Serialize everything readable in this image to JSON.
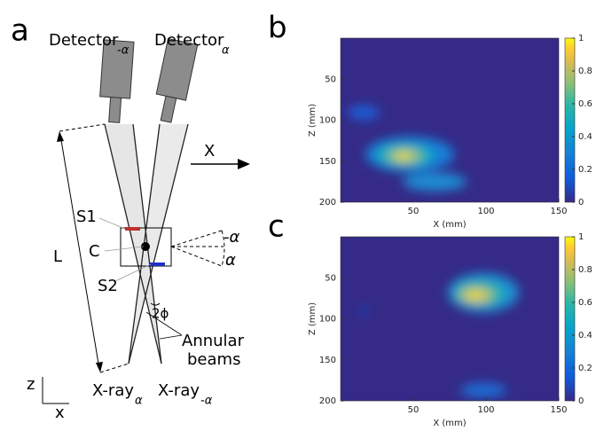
{
  "figure": {
    "panel_a": {
      "label": "a",
      "detector_left": "Detector",
      "detector_left_sub": "-α",
      "detector_right": "Detector",
      "detector_right_sub": "α",
      "x_arrow": "X",
      "s1": "S1",
      "c": "C",
      "s2": "S2",
      "l": "L",
      "angle_neg": "-α",
      "angle_pos": "α",
      "phi": "2ϕ",
      "annular": [
        "Annular",
        "beams"
      ],
      "axis_z": "z",
      "axis_x": "x",
      "source_left": "X-ray",
      "source_left_sub": "α",
      "source_right": "X-ray",
      "source_right_sub": "-α"
    },
    "heatmaps": [
      {
        "label": "b",
        "xlabel": "X (mm)",
        "ylabel": "Z (mm)",
        "xlim": [
          0,
          150
        ],
        "xticks": [
          50,
          100,
          150
        ],
        "ylim": [
          0,
          200
        ],
        "yticks": [
          50,
          100,
          150,
          200
        ],
        "clim": [
          0,
          1
        ],
        "cticks": [
          0,
          0.2,
          0.4,
          0.6,
          0.8,
          1
        ]
      },
      {
        "label": "c",
        "xlabel": "X (mm)",
        "ylabel": "Z (mm)",
        "xlim": [
          0,
          150
        ],
        "xticks": [
          50,
          100,
          150
        ],
        "ylim": [
          0,
          200
        ],
        "yticks": [
          50,
          100,
          150,
          200
        ],
        "clim": [
          0,
          1
        ],
        "cticks": [
          0,
          0.2,
          0.4,
          0.6,
          0.8,
          1
        ]
      }
    ]
  }
}
